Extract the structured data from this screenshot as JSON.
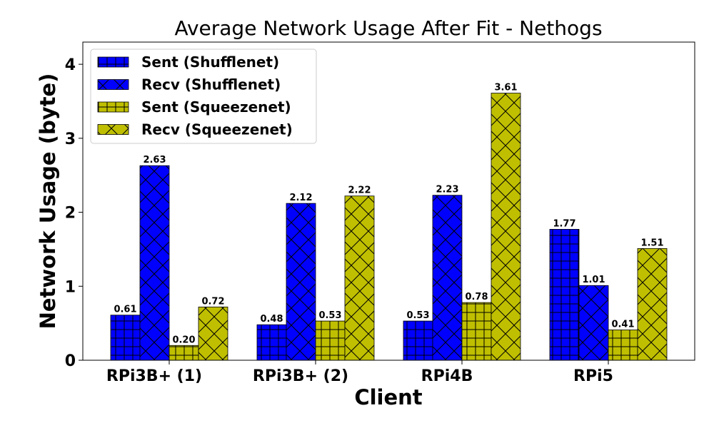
{
  "chart_data": {
    "type": "bar",
    "title": "Average Network Usage After Fit - Nethogs",
    "xlabel": "Client",
    "ylabel": "Network Usage (byte)",
    "ylim": [
      0,
      4.3
    ],
    "yticks": [
      "0",
      "1",
      "2",
      "3",
      "4"
    ],
    "categories": [
      "RPi3B+ (1)",
      "RPi3B+ (2)",
      "RPi4B",
      "RPi5"
    ],
    "legend_position": "top-left",
    "series": [
      {
        "name": "Sent (Shufflenet)",
        "color": "#0000ff",
        "hatch": "plus",
        "values": [
          0.61,
          0.48,
          0.53,
          1.77
        ],
        "labels": [
          "0.61",
          "0.48",
          "0.53",
          "1.77"
        ]
      },
      {
        "name": "Recv (Shufflenet)",
        "color": "#0000ff",
        "hatch": "cross",
        "values": [
          2.63,
          2.12,
          2.23,
          1.01
        ],
        "labels": [
          "2.63",
          "2.12",
          "2.23",
          "1.01"
        ]
      },
      {
        "name": "Sent (Squeezenet)",
        "color": "#bfbf00",
        "hatch": "plus",
        "values": [
          0.2,
          0.53,
          0.78,
          0.41
        ],
        "labels": [
          "0.20",
          "0.53",
          "0.78",
          "0.41"
        ]
      },
      {
        "name": "Recv (Squeezenet)",
        "color": "#bfbf00",
        "hatch": "cross",
        "values": [
          0.72,
          2.22,
          3.61,
          1.51
        ],
        "labels": [
          "0.72",
          "2.22",
          "3.61",
          "1.51"
        ]
      }
    ]
  }
}
